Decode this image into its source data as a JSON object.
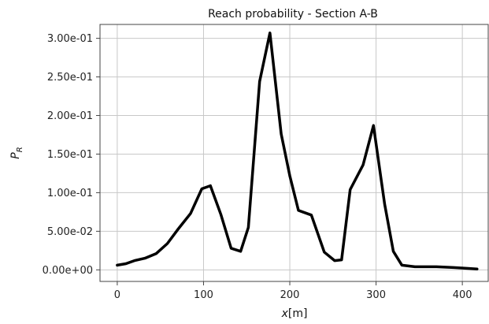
{
  "chart_data": {
    "type": "line",
    "title": "Reach probability - Section A-B",
    "xlabel_italic": "x",
    "xlabel_unit": "[m]",
    "ylabel_main": "P",
    "ylabel_sub": "R",
    "xlim": [
      -20,
      430
    ],
    "ylim": [
      -0.015,
      0.318
    ],
    "xticks": [
      0,
      100,
      200,
      300,
      400
    ],
    "xtick_labels": [
      "0",
      "100",
      "200",
      "300",
      "400"
    ],
    "yticks": [
      0.0,
      0.05,
      0.1,
      0.15,
      0.2,
      0.25,
      0.3
    ],
    "ytick_labels": [
      "0.00e+00",
      "5.00e-02",
      "1.00e-01",
      "1.50e-01",
      "2.00e-01",
      "2.50e-01",
      "3.00e-01"
    ],
    "grid": true,
    "line_color": "#000000",
    "x": [
      0,
      10,
      20,
      32,
      45,
      58,
      70,
      85,
      98,
      108,
      120,
      132,
      143,
      152,
      165,
      177,
      190,
      200,
      210,
      225,
      240,
      252,
      260,
      270,
      285,
      297,
      310,
      320,
      330,
      345,
      370,
      390,
      405,
      417
    ],
    "y": [
      0.006,
      0.008,
      0.012,
      0.015,
      0.021,
      0.034,
      0.052,
      0.073,
      0.105,
      0.109,
      0.072,
      0.028,
      0.024,
      0.055,
      0.244,
      0.307,
      0.176,
      0.122,
      0.077,
      0.071,
      0.023,
      0.012,
      0.013,
      0.104,
      0.136,
      0.187,
      0.085,
      0.024,
      0.006,
      0.004,
      0.004,
      0.003,
      0.002,
      0.001
    ]
  }
}
